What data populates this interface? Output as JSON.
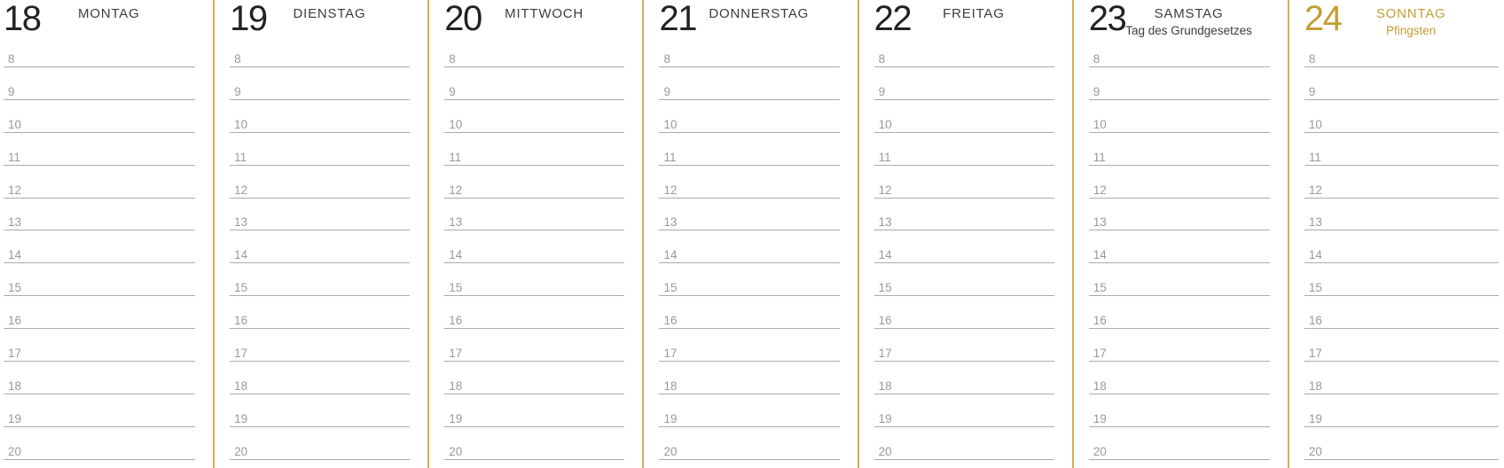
{
  "week": {
    "days": [
      {
        "number": "18",
        "name": "MONTAG",
        "subtitle": "",
        "highlight": false
      },
      {
        "number": "19",
        "name": "DIENSTAG",
        "subtitle": "",
        "highlight": false
      },
      {
        "number": "20",
        "name": "MITTWOCH",
        "subtitle": "",
        "highlight": false
      },
      {
        "number": "21",
        "name": "DONNERSTAG",
        "subtitle": "",
        "highlight": false
      },
      {
        "number": "22",
        "name": "FREITAG",
        "subtitle": "",
        "highlight": false
      },
      {
        "number": "23",
        "name": "SAMSTAG",
        "subtitle": "Tag des Grundgesetzes",
        "highlight": false
      },
      {
        "number": "24",
        "name": "SONNTAG",
        "subtitle": "Pfingsten",
        "highlight": true
      }
    ],
    "hours": [
      "8",
      "9",
      "10",
      "11",
      "12",
      "13",
      "14",
      "15",
      "16",
      "17",
      "18",
      "19",
      "20"
    ]
  },
  "colors": {
    "accent": "#C49E33",
    "divider": "#D9AC4E",
    "line": "#ABABAB",
    "hour": "#999999",
    "day_number": "#222222",
    "day_name": "#3C3C3C"
  }
}
